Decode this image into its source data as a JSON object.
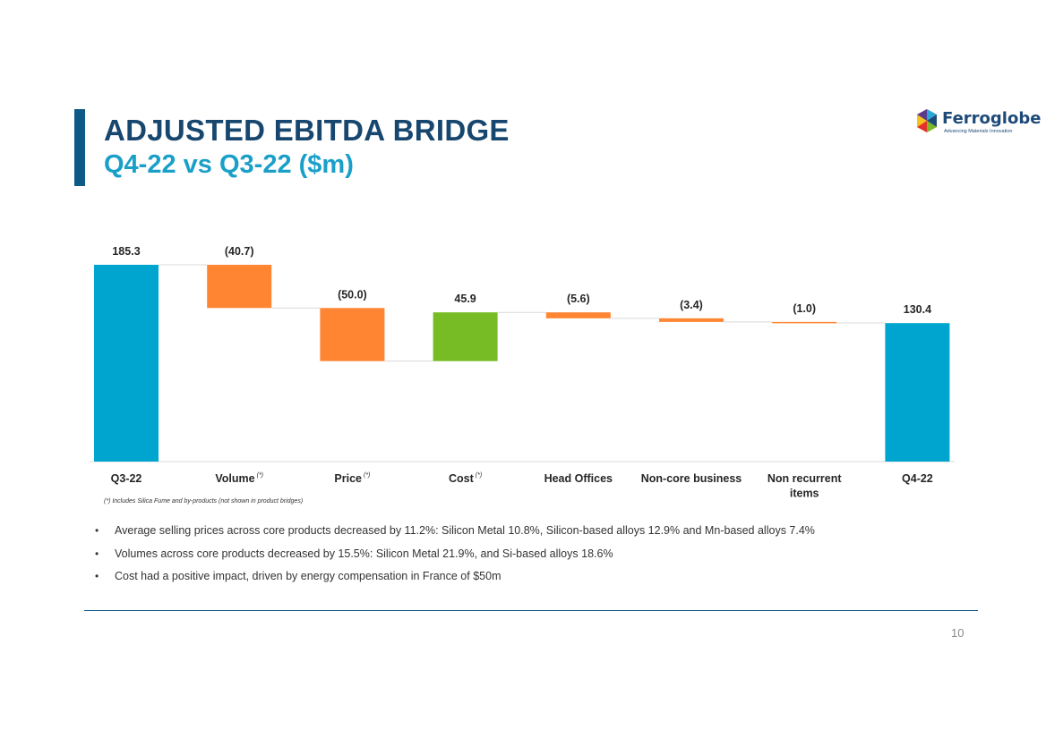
{
  "header": {
    "title": "ADJUSTED EBITDA BRIDGE",
    "subtitle": "Q4-22 vs Q3-22 ($m)"
  },
  "logo": {
    "name": "Ferroglobe",
    "tagline": "Advancing Materials Innovation"
  },
  "colors": {
    "total": "#00a5cf",
    "negative": "#ff8533",
    "positive": "#77bc24",
    "title": "#17466e",
    "subtitle": "#1aa0c8"
  },
  "chart_data": {
    "type": "waterfall",
    "title": "",
    "categories": [
      "Q3-22",
      "Volume",
      "Price",
      "Cost",
      "Head Offices",
      "Non-core business",
      "Non recurrent items",
      "Q4-22"
    ],
    "category_superscripts": [
      "",
      "(*)",
      "(*)",
      "(*)",
      "",
      "",
      "",
      ""
    ],
    "values": [
      185.3,
      -40.7,
      -50.0,
      45.9,
      -5.6,
      -3.4,
      -1.0,
      130.4
    ],
    "kinds": [
      "total",
      "delta",
      "delta",
      "delta",
      "delta",
      "delta",
      "delta",
      "total"
    ],
    "labels": [
      "185.3",
      "(40.7)",
      "(50.0)",
      "45.9",
      "(5.6)",
      "(3.4)",
      "(1.0)",
      "130.4"
    ],
    "ylim": [
      0,
      185.3
    ],
    "grid": false,
    "xlabel": "",
    "ylabel": ""
  },
  "footnote": "(*) Includes Silica Fume and by-products (not shown in product bridges)",
  "bullets": [
    "Average selling prices across core products decreased by 11.2%: Silicon Metal 10.8%, Silicon-based alloys 12.9% and Mn-based alloys 7.4%",
    "Volumes across core products decreased by 15.5%: Silicon Metal 21.9%, and Si-based alloys 18.6%",
    "Cost had a positive impact, driven by energy compensation in France of $50m"
  ],
  "page_number": "10"
}
